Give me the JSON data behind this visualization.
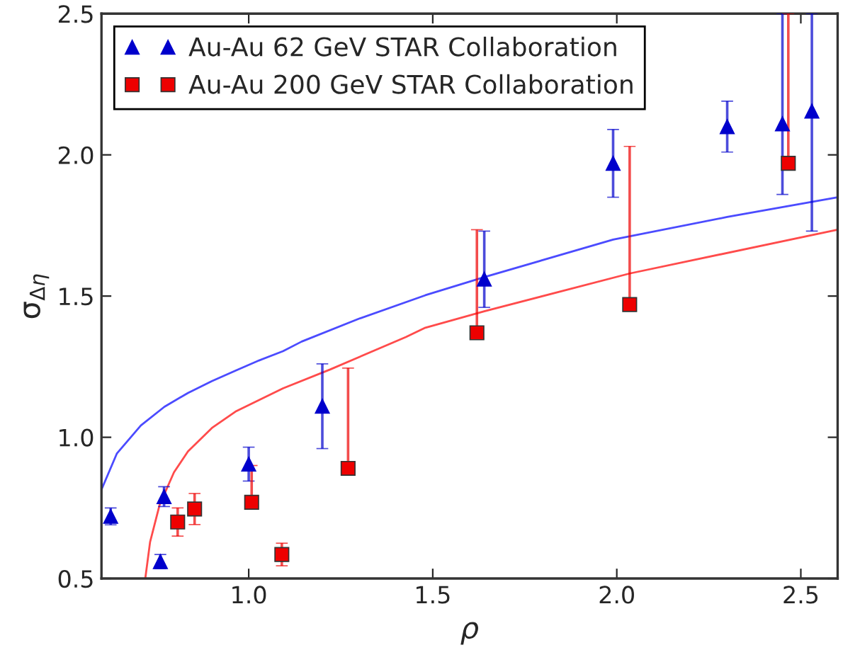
{
  "chart_data": {
    "type": "scatter",
    "xlabel": "ρ",
    "ylabel": "σ$_{Δη}$",
    "xlim": [
      0.6,
      2.6
    ],
    "ylim": [
      0.5,
      2.5
    ],
    "xticks": [
      {
        "value": 1.0,
        "label": "1.0"
      },
      {
        "value": 1.5,
        "label": "1.5"
      },
      {
        "value": 2.0,
        "label": "2.0"
      },
      {
        "value": 2.5,
        "label": "2.5"
      }
    ],
    "yticks": [
      0.5,
      {
        "value": 1.0,
        "label": "1.0"
      },
      1.5,
      {
        "value": 2.0,
        "label": "2.0"
      },
      2.5
    ],
    "grid": false,
    "legend": "top left",
    "series": [
      {
        "name": "Au-Au 62 GeV STAR Collaboration",
        "marker": "triangle",
        "color": "#0000cc",
        "x": [
          0.625,
          0.76,
          0.77,
          1.0,
          1.2,
          1.64,
          1.99,
          2.3,
          2.45,
          2.53
        ],
        "values": [
          0.72,
          0.56,
          0.79,
          0.905,
          1.11,
          1.56,
          1.97,
          2.1,
          2.11,
          2.155
        ],
        "errors": [
          0.03,
          0.025,
          0.035,
          0.06,
          0.15,
          [
            1.46,
            1.73
          ],
          0.12,
          0.09,
          [
            1.86,
            2.5
          ],
          [
            1.73,
            2.5
          ]
        ]
      },
      {
        "name": "Au-Au 200 GeV STAR Collaboration",
        "marker": "square",
        "color": "#ee0000",
        "x": [
          0.807,
          0.853,
          1.008,
          1.09,
          1.27,
          1.62,
          2.035,
          2.466
        ],
        "values": [
          0.7,
          0.746,
          0.77,
          0.585,
          0.89,
          1.37,
          1.47,
          1.97
        ],
        "errors": [
          0.05,
          0.055,
          [
            0.76,
            0.9
          ],
          0.04,
          [
            0.89,
            1.245
          ],
          [
            1.35,
            1.735
          ],
          [
            1.47,
            2.03
          ],
          [
            1.97,
            2.5
          ]
        ]
      },
      {
        "type": "line",
        "marker": "none",
        "color": "#4b4bff",
        "x": [
          0.6,
          0.642,
          0.707,
          0.771,
          0.835,
          0.9,
          0.964,
          1.028,
          1.093,
          1.144,
          1.3,
          1.48,
          1.64,
          1.99,
          2.3,
          2.6
        ],
        "values": [
          0.815,
          0.943,
          1.042,
          1.108,
          1.157,
          1.199,
          1.236,
          1.272,
          1.305,
          1.339,
          1.42,
          1.503,
          1.567,
          1.7,
          1.78,
          1.85
        ]
      },
      {
        "type": "line",
        "marker": "none",
        "color": "#ff4b4b",
        "x": [
          0.719,
          0.732,
          0.758,
          0.797,
          0.835,
          0.9,
          0.964,
          1.093,
          1.221,
          1.427,
          1.48,
          1.64,
          2.035,
          2.6
        ],
        "values": [
          0.5,
          0.629,
          0.761,
          0.876,
          0.95,
          1.033,
          1.091,
          1.173,
          1.24,
          1.355,
          1.388,
          1.446,
          1.58,
          1.735
        ]
      }
    ]
  }
}
